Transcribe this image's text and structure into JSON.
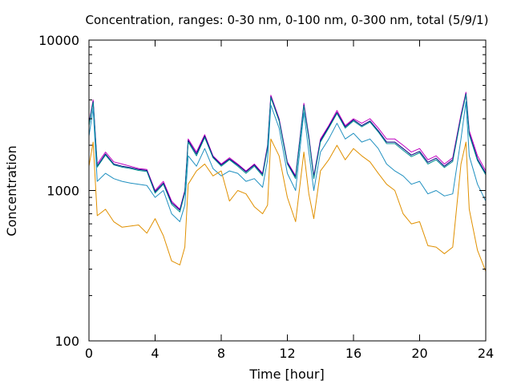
{
  "chart_data": {
    "type": "line",
    "title": "Concentration, ranges: 0-30 nm, 0-100 nm, 0-300 nm, total (5/9/1)",
    "xlabel": "Time [hour]",
    "ylabel": "Concentration",
    "xlim": [
      0,
      24
    ],
    "ylim": [
      100,
      10000
    ],
    "yscale": "log",
    "xticks": [
      "0",
      "4",
      "8",
      "12",
      "16",
      "20",
      "24"
    ],
    "yticks": [
      "100",
      "1000",
      "10000"
    ],
    "grid": false,
    "legend": "none",
    "x": [
      0,
      0.25,
      0.5,
      1,
      1.5,
      2,
      2.5,
      3,
      3.5,
      4,
      4.5,
      5,
      5.5,
      5.8,
      6,
      6.5,
      7,
      7.5,
      8,
      8.5,
      9,
      9.5,
      10,
      10.5,
      10.8,
      11,
      11.5,
      12,
      12.5,
      13,
      13.3,
      13.6,
      14,
      14.5,
      15,
      15.5,
      16,
      16.5,
      17,
      17.5,
      18,
      18.5,
      19,
      19.5,
      20,
      20.5,
      21,
      21.5,
      22,
      22.5,
      22.8,
      23,
      23.5,
      24
    ],
    "series": [
      {
        "color": "#c000c0",
        "values": [
          2800,
          4000,
          1500,
          1800,
          1550,
          1500,
          1450,
          1400,
          1380,
          1000,
          1150,
          850,
          750,
          1000,
          2200,
          1800,
          2350,
          1700,
          1500,
          1650,
          1500,
          1350,
          1500,
          1300,
          2000,
          4300,
          3000,
          1550,
          1250,
          3800,
          2300,
          1250,
          2200,
          2700,
          3400,
          2700,
          3000,
          2800,
          3000,
          2600,
          2200,
          2200,
          2000,
          1800,
          1900,
          1600,
          1700,
          1500,
          1650,
          3200,
          4500,
          2500,
          1700,
          1350
        ]
      },
      {
        "color": "#000080",
        "values": [
          2750,
          3900,
          1450,
          1750,
          1500,
          1450,
          1420,
          1380,
          1360,
          980,
          1120,
          830,
          740,
          980,
          2150,
          1750,
          2300,
          1680,
          1480,
          1620,
          1480,
          1330,
          1480,
          1280,
          1950,
          4200,
          2950,
          1520,
          1230,
          3700,
          2250,
          1220,
          2150,
          2650,
          3300,
          2650,
          2950,
          2700,
          2900,
          2500,
          2100,
          2100,
          1900,
          1720,
          1820,
          1540,
          1640,
          1450,
          1600,
          3100,
          4400,
          2400,
          1620,
          1300
        ]
      },
      {
        "color": "#009090",
        "values": [
          2700,
          3850,
          1430,
          1720,
          1480,
          1430,
          1400,
          1360,
          1340,
          960,
          1100,
          810,
          720,
          960,
          2100,
          1700,
          2250,
          1650,
          1450,
          1600,
          1450,
          1300,
          1450,
          1250,
          1900,
          4150,
          2900,
          1500,
          1200,
          3650,
          2200,
          1200,
          2100,
          2600,
          3250,
          2600,
          2900,
          2650,
          2850,
          2450,
          2050,
          2050,
          1850,
          1680,
          1780,
          1500,
          1600,
          1420,
          1560,
          3050,
          4350,
          2350,
          1580,
          1270
        ]
      },
      {
        "color": "#2090c0",
        "values": [
          2300,
          3500,
          1150,
          1300,
          1200,
          1150,
          1120,
          1100,
          1080,
          900,
          1000,
          700,
          620,
          800,
          1700,
          1450,
          1900,
          1400,
          1250,
          1350,
          1300,
          1150,
          1200,
          1050,
          1600,
          3700,
          2600,
          1300,
          1000,
          3300,
          1800,
          1000,
          1800,
          2200,
          2800,
          2200,
          2400,
          2100,
          2200,
          1900,
          1500,
          1350,
          1250,
          1100,
          1150,
          950,
          1000,
          920,
          950,
          2200,
          3900,
          1700,
          1100,
          850
        ]
      },
      {
        "color": "#e09000",
        "values": [
          1450,
          2100,
          680,
          750,
          620,
          570,
          580,
          590,
          520,
          650,
          500,
          340,
          320,
          420,
          1100,
          1350,
          1500,
          1250,
          1350,
          850,
          1000,
          950,
          780,
          700,
          800,
          2200,
          1700,
          900,
          620,
          1800,
          950,
          650,
          1350,
          1600,
          2000,
          1600,
          1900,
          1700,
          1550,
          1300,
          1100,
          1000,
          700,
          600,
          620,
          430,
          420,
          380,
          420,
          1500,
          2100,
          750,
          400,
          290
        ]
      }
    ]
  }
}
